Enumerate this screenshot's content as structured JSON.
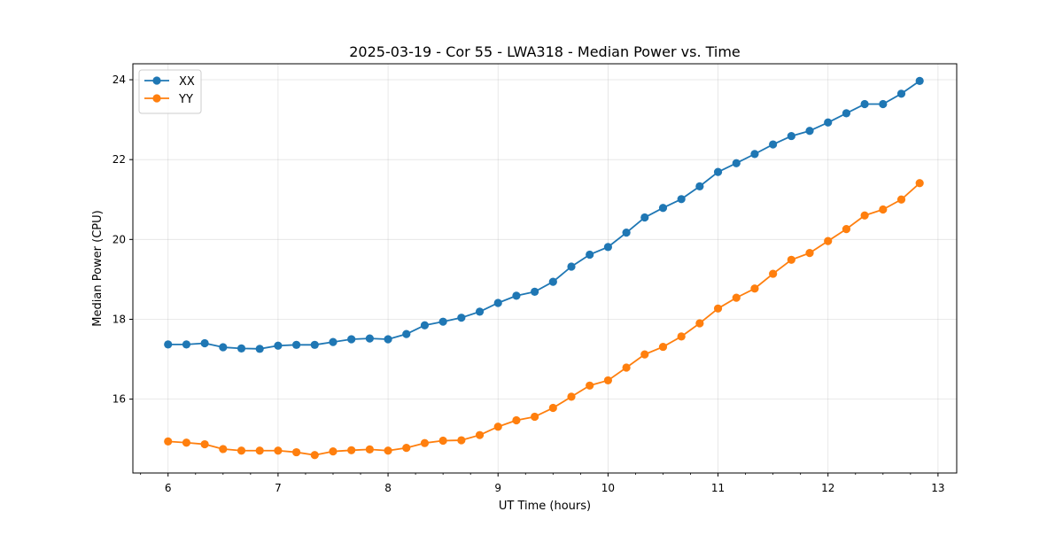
{
  "chart_data": {
    "type": "line",
    "title": "2025-03-19 - Cor 55 - LWA318 - Median Power vs. Time",
    "xlabel": "UT Time (hours)",
    "ylabel": "Median Power (CPU)",
    "xlim": [
      5.68,
      13.17
    ],
    "ylim": [
      14.15,
      24.4
    ],
    "xticks": [
      6,
      7,
      8,
      9,
      10,
      11,
      12,
      13
    ],
    "yticks": [
      16,
      18,
      20,
      22,
      24
    ],
    "x_minor_step": 0.25,
    "grid": true,
    "legend_position": "upper-left",
    "series": [
      {
        "name": "XX",
        "color": "#1f77b4",
        "marker": "circle",
        "x": [
          6.0,
          6.1667,
          6.3333,
          6.5,
          6.6667,
          6.8333,
          7.0,
          7.1667,
          7.3333,
          7.5,
          7.6667,
          7.8333,
          8.0,
          8.1667,
          8.3333,
          8.5,
          8.6667,
          8.8333,
          9.0,
          9.1667,
          9.3333,
          9.5,
          9.6667,
          9.8333,
          10.0,
          10.1667,
          10.3333,
          10.5,
          10.6667,
          10.8333,
          11.0,
          11.1667,
          11.3333,
          11.5,
          11.6667,
          11.8333,
          12.0,
          12.1667,
          12.3333,
          12.5,
          12.6667,
          12.8333
        ],
        "values": [
          17.37,
          17.37,
          17.4,
          17.3,
          17.27,
          17.26,
          17.34,
          17.36,
          17.36,
          17.43,
          17.5,
          17.52,
          17.5,
          17.63,
          17.85,
          17.94,
          18.04,
          18.19,
          18.41,
          18.59,
          18.69,
          18.94,
          19.32,
          19.62,
          19.81,
          20.17,
          20.55,
          20.79,
          21.01,
          21.33,
          21.69,
          21.91,
          22.14,
          22.38,
          22.59,
          22.72,
          22.93,
          23.16,
          23.39,
          23.39,
          23.65,
          23.97
        ]
      },
      {
        "name": "YY",
        "color": "#ff7f0e",
        "marker": "circle",
        "x": [
          6.0,
          6.1667,
          6.3333,
          6.5,
          6.6667,
          6.8333,
          7.0,
          7.1667,
          7.3333,
          7.5,
          7.6667,
          7.8333,
          8.0,
          8.1667,
          8.3333,
          8.5,
          8.6667,
          8.8333,
          9.0,
          9.1667,
          9.3333,
          9.5,
          9.6667,
          9.8333,
          10.0,
          10.1667,
          10.3333,
          10.5,
          10.6667,
          10.8333,
          11.0,
          11.1667,
          11.3333,
          11.5,
          11.6667,
          11.8333,
          12.0,
          12.1667,
          12.3333,
          12.5,
          12.6667,
          12.8333
        ],
        "values": [
          14.94,
          14.91,
          14.87,
          14.75,
          14.71,
          14.71,
          14.71,
          14.67,
          14.6,
          14.69,
          14.72,
          14.74,
          14.71,
          14.78,
          14.9,
          14.96,
          14.97,
          15.1,
          15.31,
          15.47,
          15.56,
          15.78,
          16.06,
          16.34,
          16.47,
          16.79,
          17.12,
          17.31,
          17.57,
          17.9,
          18.27,
          18.54,
          18.77,
          19.14,
          19.49,
          19.66,
          19.96,
          20.26,
          20.6,
          20.75,
          21.0,
          21.41
        ]
      }
    ]
  }
}
